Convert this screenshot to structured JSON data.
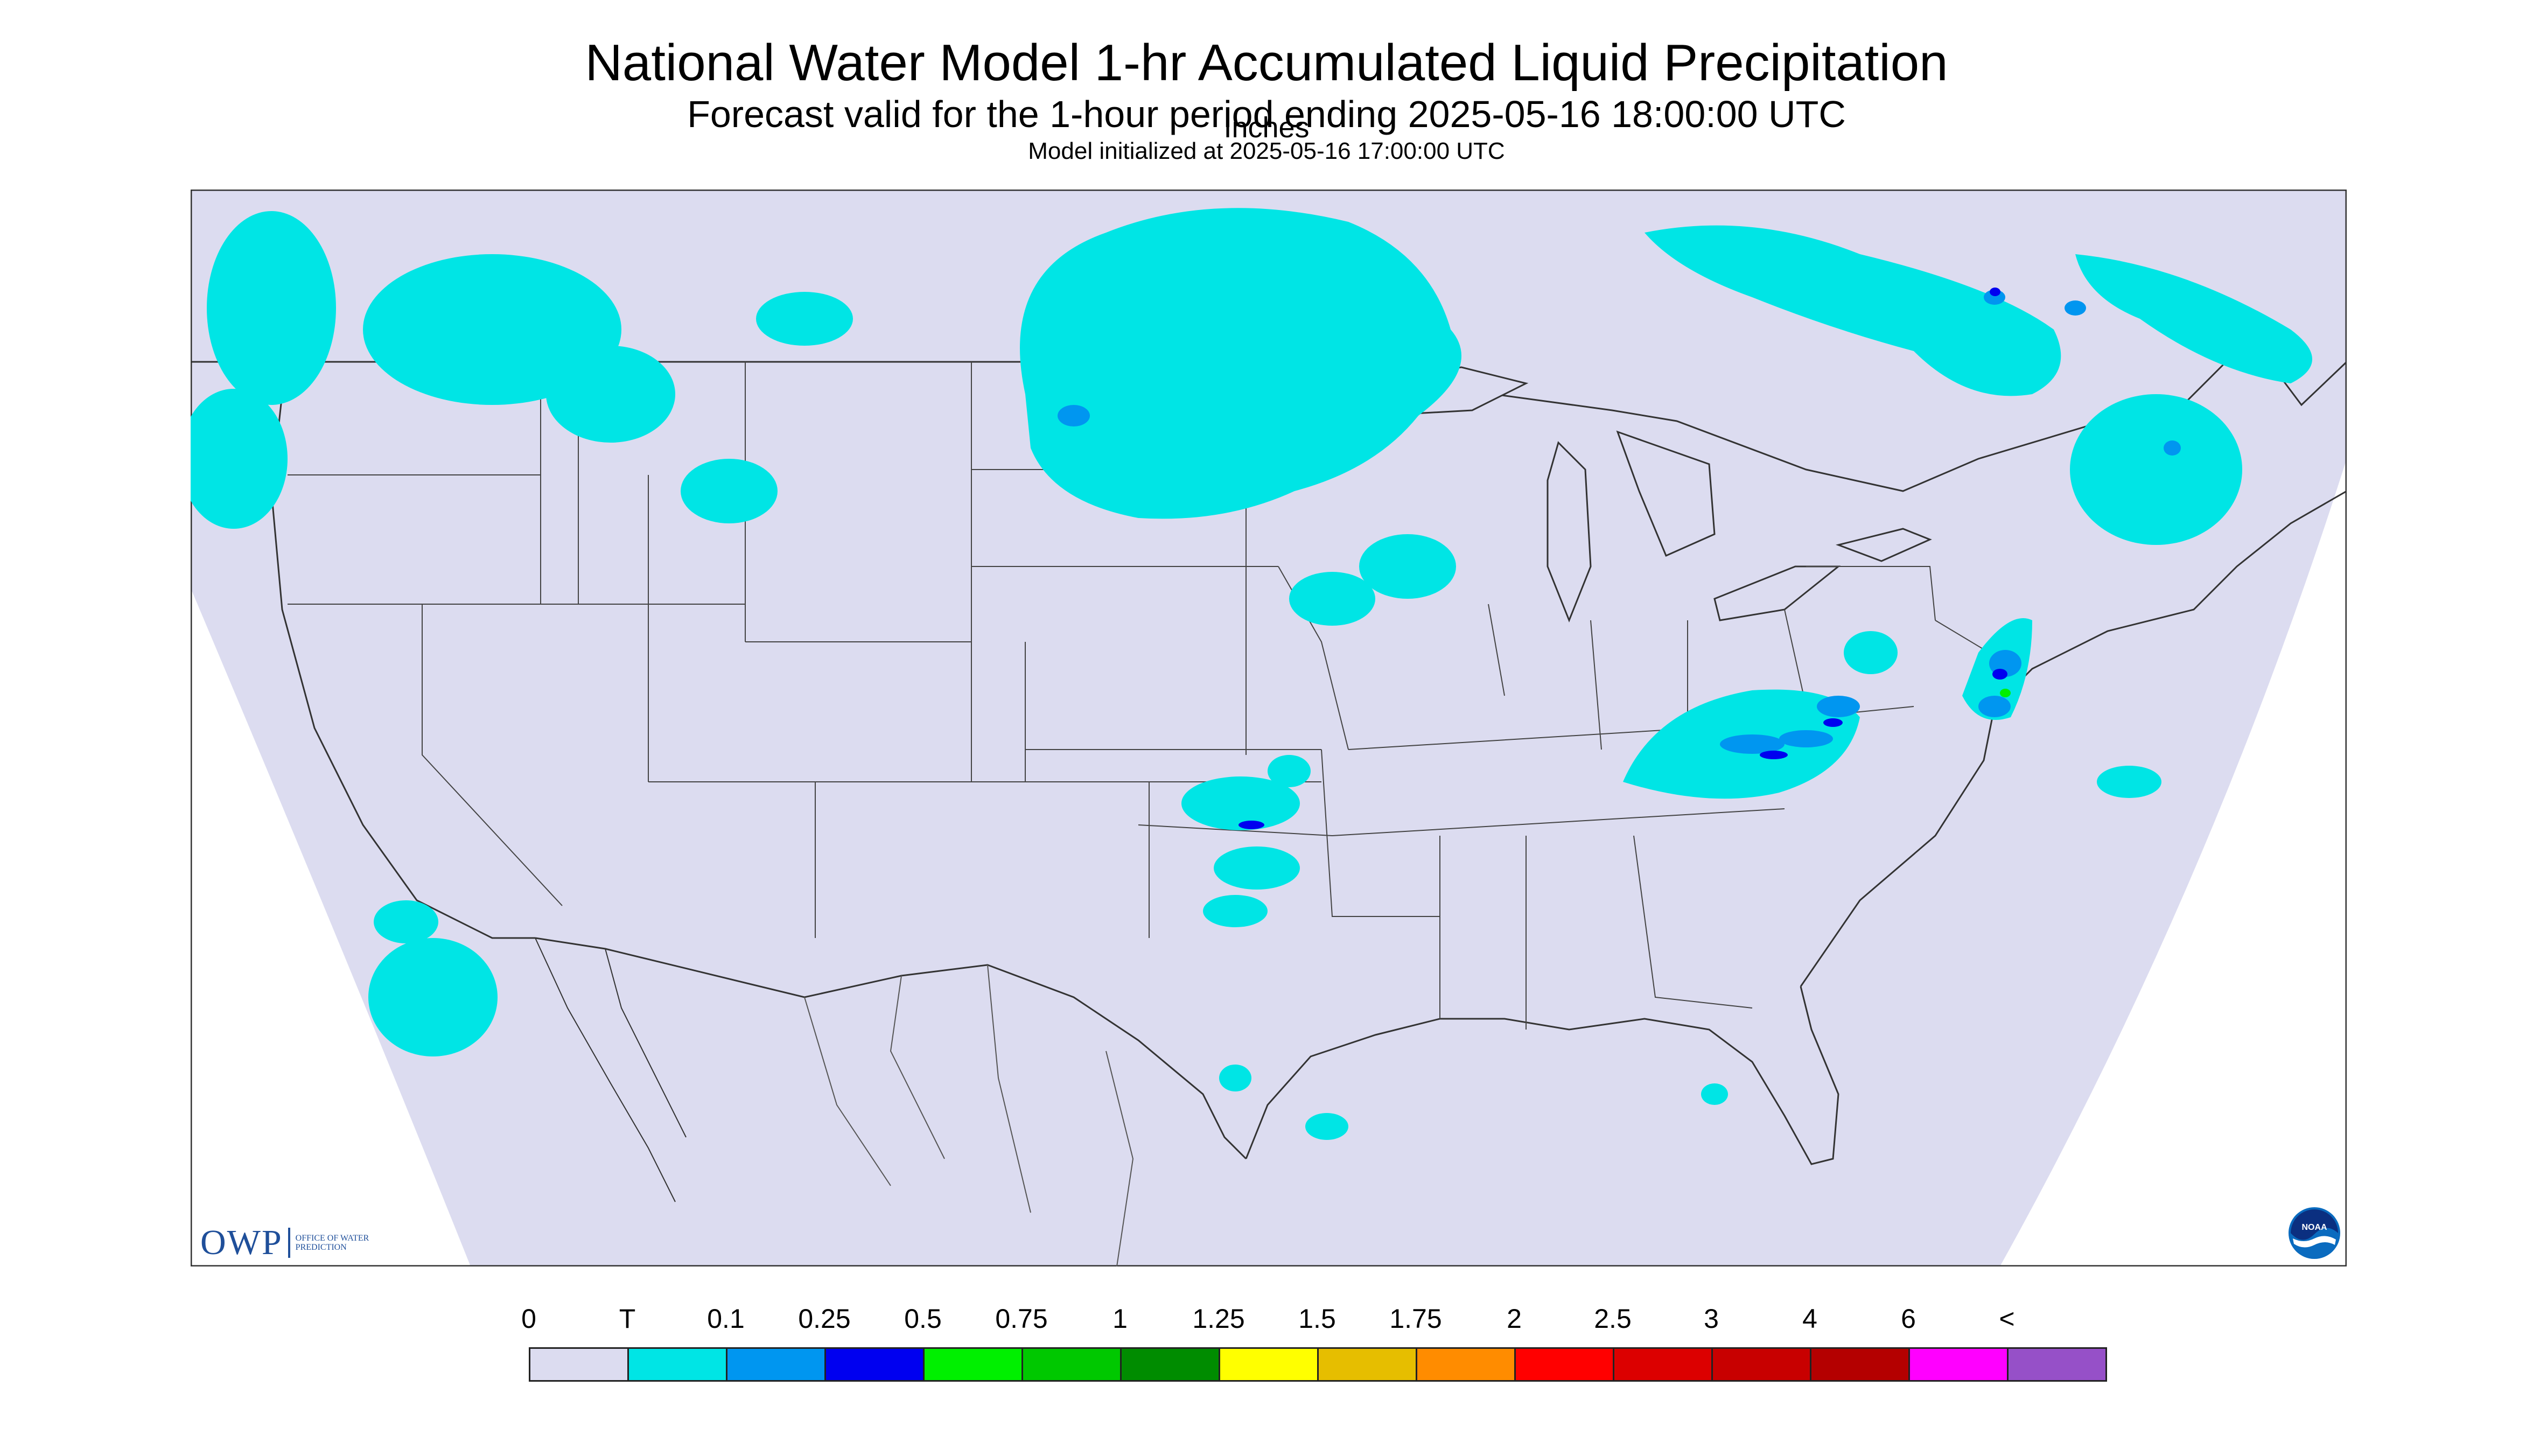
{
  "header": {
    "title": "National Water Model 1-hr Accumulated Liquid Precipitation",
    "subtitle": "Forecast valid for the 1-hour period ending 2025-05-16 18:00:00 UTC",
    "init": "Model initialized at 2025-05-16 17:00:00 UTC"
  },
  "colors": {
    "map_background": "#dcdcf0",
    "outside": "#ffffff",
    "boundary": "#333333"
  },
  "map": {
    "icons": [
      "owp-logo",
      "noaa-logo"
    ]
  },
  "logos": {
    "owp_mark": "OWP",
    "owp_text": "OFFICE OF WATER PREDICTION",
    "noaa_text": "NOAA"
  },
  "legend": {
    "ticks": [
      "0",
      "T",
      "0.1",
      "0.25",
      "0.5",
      "0.75",
      "1",
      "1.25",
      "1.5",
      "1.75",
      "2",
      "2.5",
      "3",
      "4",
      "6",
      "<"
    ],
    "colors": [
      "#dcdcf0",
      "#00e5e5",
      "#0096f0",
      "#0000f0",
      "#00f000",
      "#00c800",
      "#008c00",
      "#ffff00",
      "#e6be00",
      "#ff8c00",
      "#ff0000",
      "#dc0000",
      "#c80000",
      "#b40000",
      "#ff00ff",
      "#9650c8"
    ],
    "units": "Inches"
  },
  "precip_cells": [
    {
      "region": "pacific-northwest",
      "intensity": "T"
    },
    {
      "region": "northern-rockies",
      "intensity": "T"
    },
    {
      "region": "northern-plains",
      "intensity": "T"
    },
    {
      "region": "upper-midwest",
      "intensity": "T"
    },
    {
      "region": "ontario-quebec",
      "intensity": "0.1"
    },
    {
      "region": "ohio-valley-appalachia",
      "intensity": "0.25"
    },
    {
      "region": "mid-atlantic",
      "intensity": "0.5"
    },
    {
      "region": "new-england",
      "intensity": "0.1"
    },
    {
      "region": "southern-plains",
      "intensity": "0.25"
    },
    {
      "region": "baja-california",
      "intensity": "T"
    },
    {
      "region": "gulf-coast",
      "intensity": "T"
    }
  ]
}
